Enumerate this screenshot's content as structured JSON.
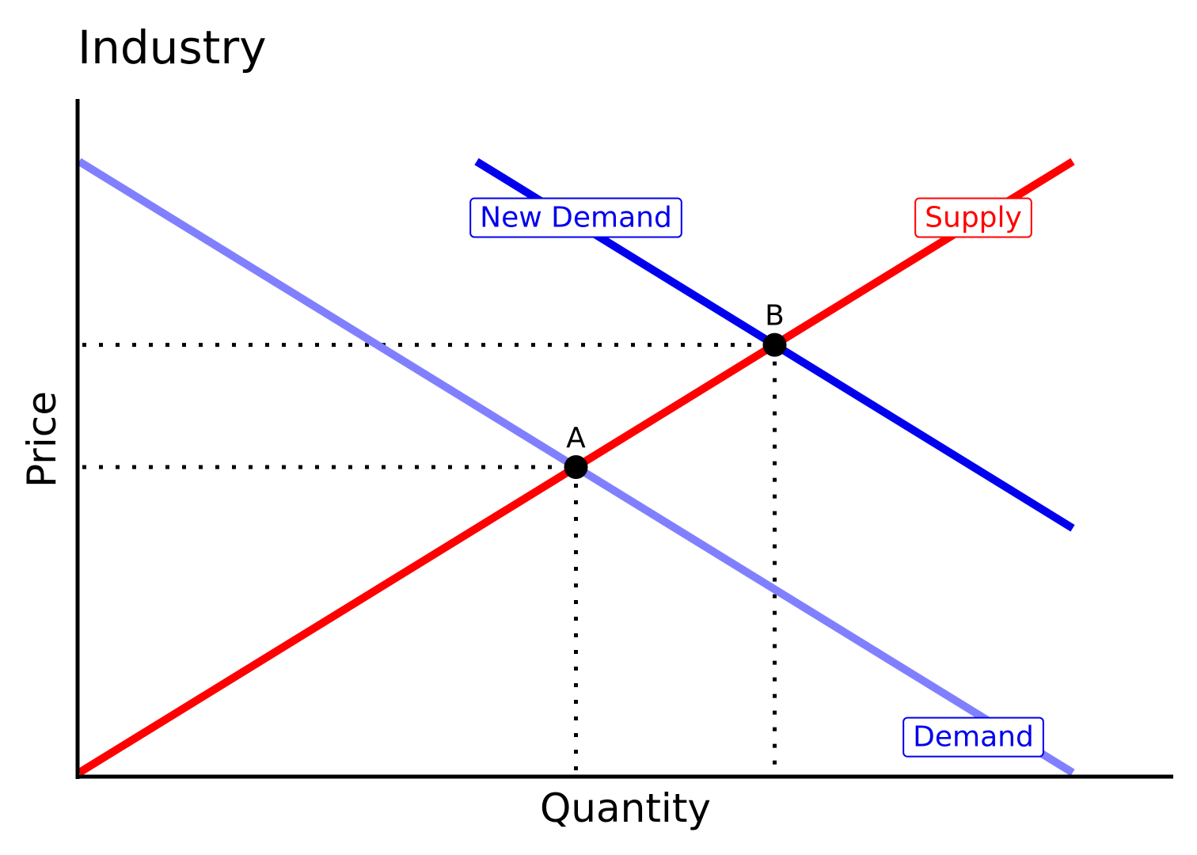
{
  "chart_data": {
    "type": "line",
    "title": "Industry",
    "xlabel": "Quantity",
    "ylabel": "Price",
    "xlim": [
      0,
      10
    ],
    "ylim": [
      0,
      10
    ],
    "grid": false,
    "series": [
      {
        "name": "Demand",
        "color": "#8080ff",
        "x": [
          0,
          10
        ],
        "y": [
          10,
          0
        ]
      },
      {
        "name": "New Demand",
        "color": "#0000ee",
        "x": [
          4,
          10
        ],
        "y": [
          10,
          4
        ]
      },
      {
        "name": "Supply",
        "color": "#ff0000",
        "x": [
          0,
          10
        ],
        "y": [
          0,
          10
        ]
      }
    ],
    "points": [
      {
        "label": "A",
        "x": 5,
        "y": 5
      },
      {
        "label": "B",
        "x": 7,
        "y": 7
      }
    ]
  }
}
